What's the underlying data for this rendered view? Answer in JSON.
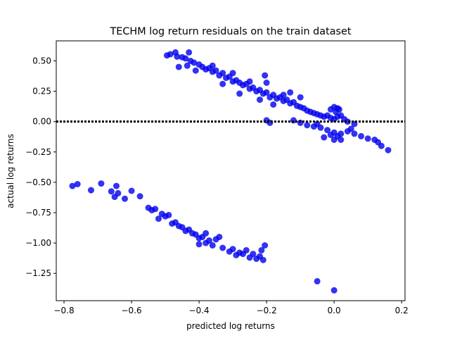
{
  "chart_data": {
    "type": "scatter",
    "title": "TECHM log return residuals on the train dataset",
    "xlabel": "predicted log returns",
    "ylabel": "actual log returns",
    "xlim": [
      -0.823,
      0.21
    ],
    "ylim": [
      -1.475,
      0.665
    ],
    "x_ticks": [
      -0.8,
      -0.6,
      -0.4,
      -0.2,
      0.0,
      0.2
    ],
    "x_tick_labels": [
      "−0.8",
      "−0.6",
      "−0.4",
      "−0.2",
      "0.0",
      "0.2"
    ],
    "y_ticks": [
      0.5,
      0.25,
      0.0,
      -0.25,
      -0.5,
      -0.75,
      -1.0,
      -1.25
    ],
    "y_tick_labels": [
      "0.50",
      "0.25",
      "0.00",
      "−0.25",
      "−0.50",
      "−0.75",
      "−1.00",
      "−1.25"
    ],
    "reference_line": {
      "y": 0.0,
      "style": "dotted",
      "color": "#000000"
    },
    "marker_color": "#0000ee",
    "grid": false,
    "series": [
      {
        "values": [
          {
            "x": -0.495,
            "y": 0.545
          },
          {
            "x": -0.485,
            "y": 0.555
          },
          {
            "x": -0.47,
            "y": 0.57
          },
          {
            "x": -0.465,
            "y": 0.535
          },
          {
            "x": -0.46,
            "y": 0.45
          },
          {
            "x": -0.45,
            "y": 0.53
          },
          {
            "x": -0.44,
            "y": 0.52
          },
          {
            "x": -0.435,
            "y": 0.46
          },
          {
            "x": -0.425,
            "y": 0.5
          },
          {
            "x": -0.415,
            "y": 0.485
          },
          {
            "x": -0.41,
            "y": 0.42
          },
          {
            "x": -0.4,
            "y": 0.47
          },
          {
            "x": -0.39,
            "y": 0.45
          },
          {
            "x": -0.38,
            "y": 0.43
          },
          {
            "x": -0.37,
            "y": 0.44
          },
          {
            "x": -0.36,
            "y": 0.41
          },
          {
            "x": -0.35,
            "y": 0.42
          },
          {
            "x": -0.34,
            "y": 0.38
          },
          {
            "x": -0.33,
            "y": 0.4
          },
          {
            "x": -0.32,
            "y": 0.36
          },
          {
            "x": -0.31,
            "y": 0.37
          },
          {
            "x": -0.3,
            "y": 0.33
          },
          {
            "x": -0.29,
            "y": 0.34
          },
          {
            "x": -0.28,
            "y": 0.32
          },
          {
            "x": -0.27,
            "y": 0.3
          },
          {
            "x": -0.26,
            "y": 0.31
          },
          {
            "x": -0.25,
            "y": 0.27
          },
          {
            "x": -0.24,
            "y": 0.28
          },
          {
            "x": -0.23,
            "y": 0.25
          },
          {
            "x": -0.22,
            "y": 0.26
          },
          {
            "x": -0.21,
            "y": 0.23
          },
          {
            "x": -0.2,
            "y": 0.24
          },
          {
            "x": -0.19,
            "y": 0.2
          },
          {
            "x": -0.18,
            "y": 0.22
          },
          {
            "x": -0.17,
            "y": 0.19
          },
          {
            "x": -0.16,
            "y": 0.2
          },
          {
            "x": -0.15,
            "y": 0.17
          },
          {
            "x": -0.14,
            "y": 0.18
          },
          {
            "x": -0.13,
            "y": 0.15
          },
          {
            "x": -0.12,
            "y": 0.16
          },
          {
            "x": -0.11,
            "y": 0.13
          },
          {
            "x": -0.1,
            "y": 0.12
          },
          {
            "x": -0.09,
            "y": 0.11
          },
          {
            "x": -0.08,
            "y": 0.09
          },
          {
            "x": -0.07,
            "y": 0.08
          },
          {
            "x": -0.06,
            "y": 0.07
          },
          {
            "x": -0.05,
            "y": 0.06
          },
          {
            "x": -0.04,
            "y": 0.05
          },
          {
            "x": -0.03,
            "y": 0.04
          },
          {
            "x": -0.02,
            "y": 0.05
          },
          {
            "x": -0.01,
            "y": 0.03
          },
          {
            "x": 0.0,
            "y": 0.02
          },
          {
            "x": 0.005,
            "y": 0.08
          },
          {
            "x": 0.01,
            "y": 0.04
          },
          {
            "x": 0.015,
            "y": 0.1
          },
          {
            "x": 0.02,
            "y": 0.05
          },
          {
            "x": 0.03,
            "y": 0.02
          },
          {
            "x": 0.04,
            "y": 0.0
          },
          {
            "x": -0.43,
            "y": 0.57
          },
          {
            "x": -0.36,
            "y": 0.46
          },
          {
            "x": -0.3,
            "y": 0.4
          },
          {
            "x": -0.25,
            "y": 0.33
          },
          {
            "x": -0.205,
            "y": 0.38
          },
          {
            "x": -0.2,
            "y": 0.32
          },
          {
            "x": -0.15,
            "y": 0.22
          },
          {
            "x": -0.13,
            "y": 0.24
          },
          {
            "x": -0.1,
            "y": 0.2
          },
          {
            "x": -0.33,
            "y": 0.31
          },
          {
            "x": -0.28,
            "y": 0.23
          },
          {
            "x": -0.22,
            "y": 0.18
          },
          {
            "x": -0.18,
            "y": 0.14
          },
          {
            "x": -0.2,
            "y": 0.01
          },
          {
            "x": -0.19,
            "y": -0.01
          },
          {
            "x": -0.05,
            "y": -0.02
          },
          {
            "x": -0.12,
            "y": 0.01
          },
          {
            "x": -0.1,
            "y": -0.01
          },
          {
            "x": -0.08,
            "y": -0.03
          },
          {
            "x": -0.06,
            "y": -0.04
          },
          {
            "x": -0.04,
            "y": -0.05
          },
          {
            "x": -0.02,
            "y": -0.07
          },
          {
            "x": 0.0,
            "y": -0.09
          },
          {
            "x": 0.01,
            "y": -0.12
          },
          {
            "x": 0.02,
            "y": -0.1
          },
          {
            "x": 0.04,
            "y": -0.08
          },
          {
            "x": 0.06,
            "y": -0.1
          },
          {
            "x": 0.08,
            "y": -0.12
          },
          {
            "x": 0.1,
            "y": -0.14
          },
          {
            "x": 0.12,
            "y": -0.15
          },
          {
            "x": 0.14,
            "y": -0.2
          },
          {
            "x": 0.16,
            "y": -0.235
          },
          {
            "x": 0.13,
            "y": -0.17
          },
          {
            "x": 0.05,
            "y": -0.06
          },
          {
            "x": 0.06,
            "y": -0.02
          },
          {
            "x": -0.01,
            "y": -0.11
          },
          {
            "x": -0.03,
            "y": -0.13
          },
          {
            "x": 0.0,
            "y": -0.15
          },
          {
            "x": 0.02,
            "y": -0.15
          },
          {
            "x": -0.01,
            "y": 0.1
          },
          {
            "x": 0.0,
            "y": 0.12
          },
          {
            "x": 0.01,
            "y": 0.11
          },
          {
            "x": -0.775,
            "y": -0.53
          },
          {
            "x": -0.76,
            "y": -0.515
          },
          {
            "x": -0.72,
            "y": -0.565
          },
          {
            "x": -0.69,
            "y": -0.51
          },
          {
            "x": -0.66,
            "y": -0.575
          },
          {
            "x": -0.65,
            "y": -0.62
          },
          {
            "x": -0.645,
            "y": -0.53
          },
          {
            "x": -0.64,
            "y": -0.59
          },
          {
            "x": -0.62,
            "y": -0.635
          },
          {
            "x": -0.6,
            "y": -0.57
          },
          {
            "x": -0.575,
            "y": -0.615
          },
          {
            "x": -0.55,
            "y": -0.71
          },
          {
            "x": -0.54,
            "y": -0.73
          },
          {
            "x": -0.53,
            "y": -0.72
          },
          {
            "x": -0.52,
            "y": -0.8
          },
          {
            "x": -0.51,
            "y": -0.76
          },
          {
            "x": -0.5,
            "y": -0.78
          },
          {
            "x": -0.49,
            "y": -0.77
          },
          {
            "x": -0.48,
            "y": -0.84
          },
          {
            "x": -0.47,
            "y": -0.83
          },
          {
            "x": -0.46,
            "y": -0.86
          },
          {
            "x": -0.45,
            "y": -0.87
          },
          {
            "x": -0.44,
            "y": -0.9
          },
          {
            "x": -0.43,
            "y": -0.89
          },
          {
            "x": -0.42,
            "y": -0.92
          },
          {
            "x": -0.41,
            "y": -0.93
          },
          {
            "x": -0.4,
            "y": -0.96
          },
          {
            "x": -0.39,
            "y": -0.95
          },
          {
            "x": -0.38,
            "y": -1.0
          },
          {
            "x": -0.37,
            "y": -0.98
          },
          {
            "x": -0.36,
            "y": -1.02
          },
          {
            "x": -0.35,
            "y": -0.97
          },
          {
            "x": -0.33,
            "y": -1.04
          },
          {
            "x": -0.31,
            "y": -1.07
          },
          {
            "x": -0.3,
            "y": -1.05
          },
          {
            "x": -0.29,
            "y": -1.1
          },
          {
            "x": -0.28,
            "y": -1.08
          },
          {
            "x": -0.27,
            "y": -1.09
          },
          {
            "x": -0.26,
            "y": -1.06
          },
          {
            "x": -0.25,
            "y": -1.12
          },
          {
            "x": -0.24,
            "y": -1.09
          },
          {
            "x": -0.23,
            "y": -1.13
          },
          {
            "x": -0.22,
            "y": -1.11
          },
          {
            "x": -0.21,
            "y": -1.14
          },
          {
            "x": -0.205,
            "y": -1.02
          },
          {
            "x": -0.215,
            "y": -1.06
          },
          {
            "x": -0.38,
            "y": -0.92
          },
          {
            "x": -0.4,
            "y": -1.01
          },
          {
            "x": -0.34,
            "y": -0.95
          },
          {
            "x": -0.05,
            "y": -1.315
          },
          {
            "x": 0.0,
            "y": -1.39
          }
        ]
      }
    ]
  }
}
